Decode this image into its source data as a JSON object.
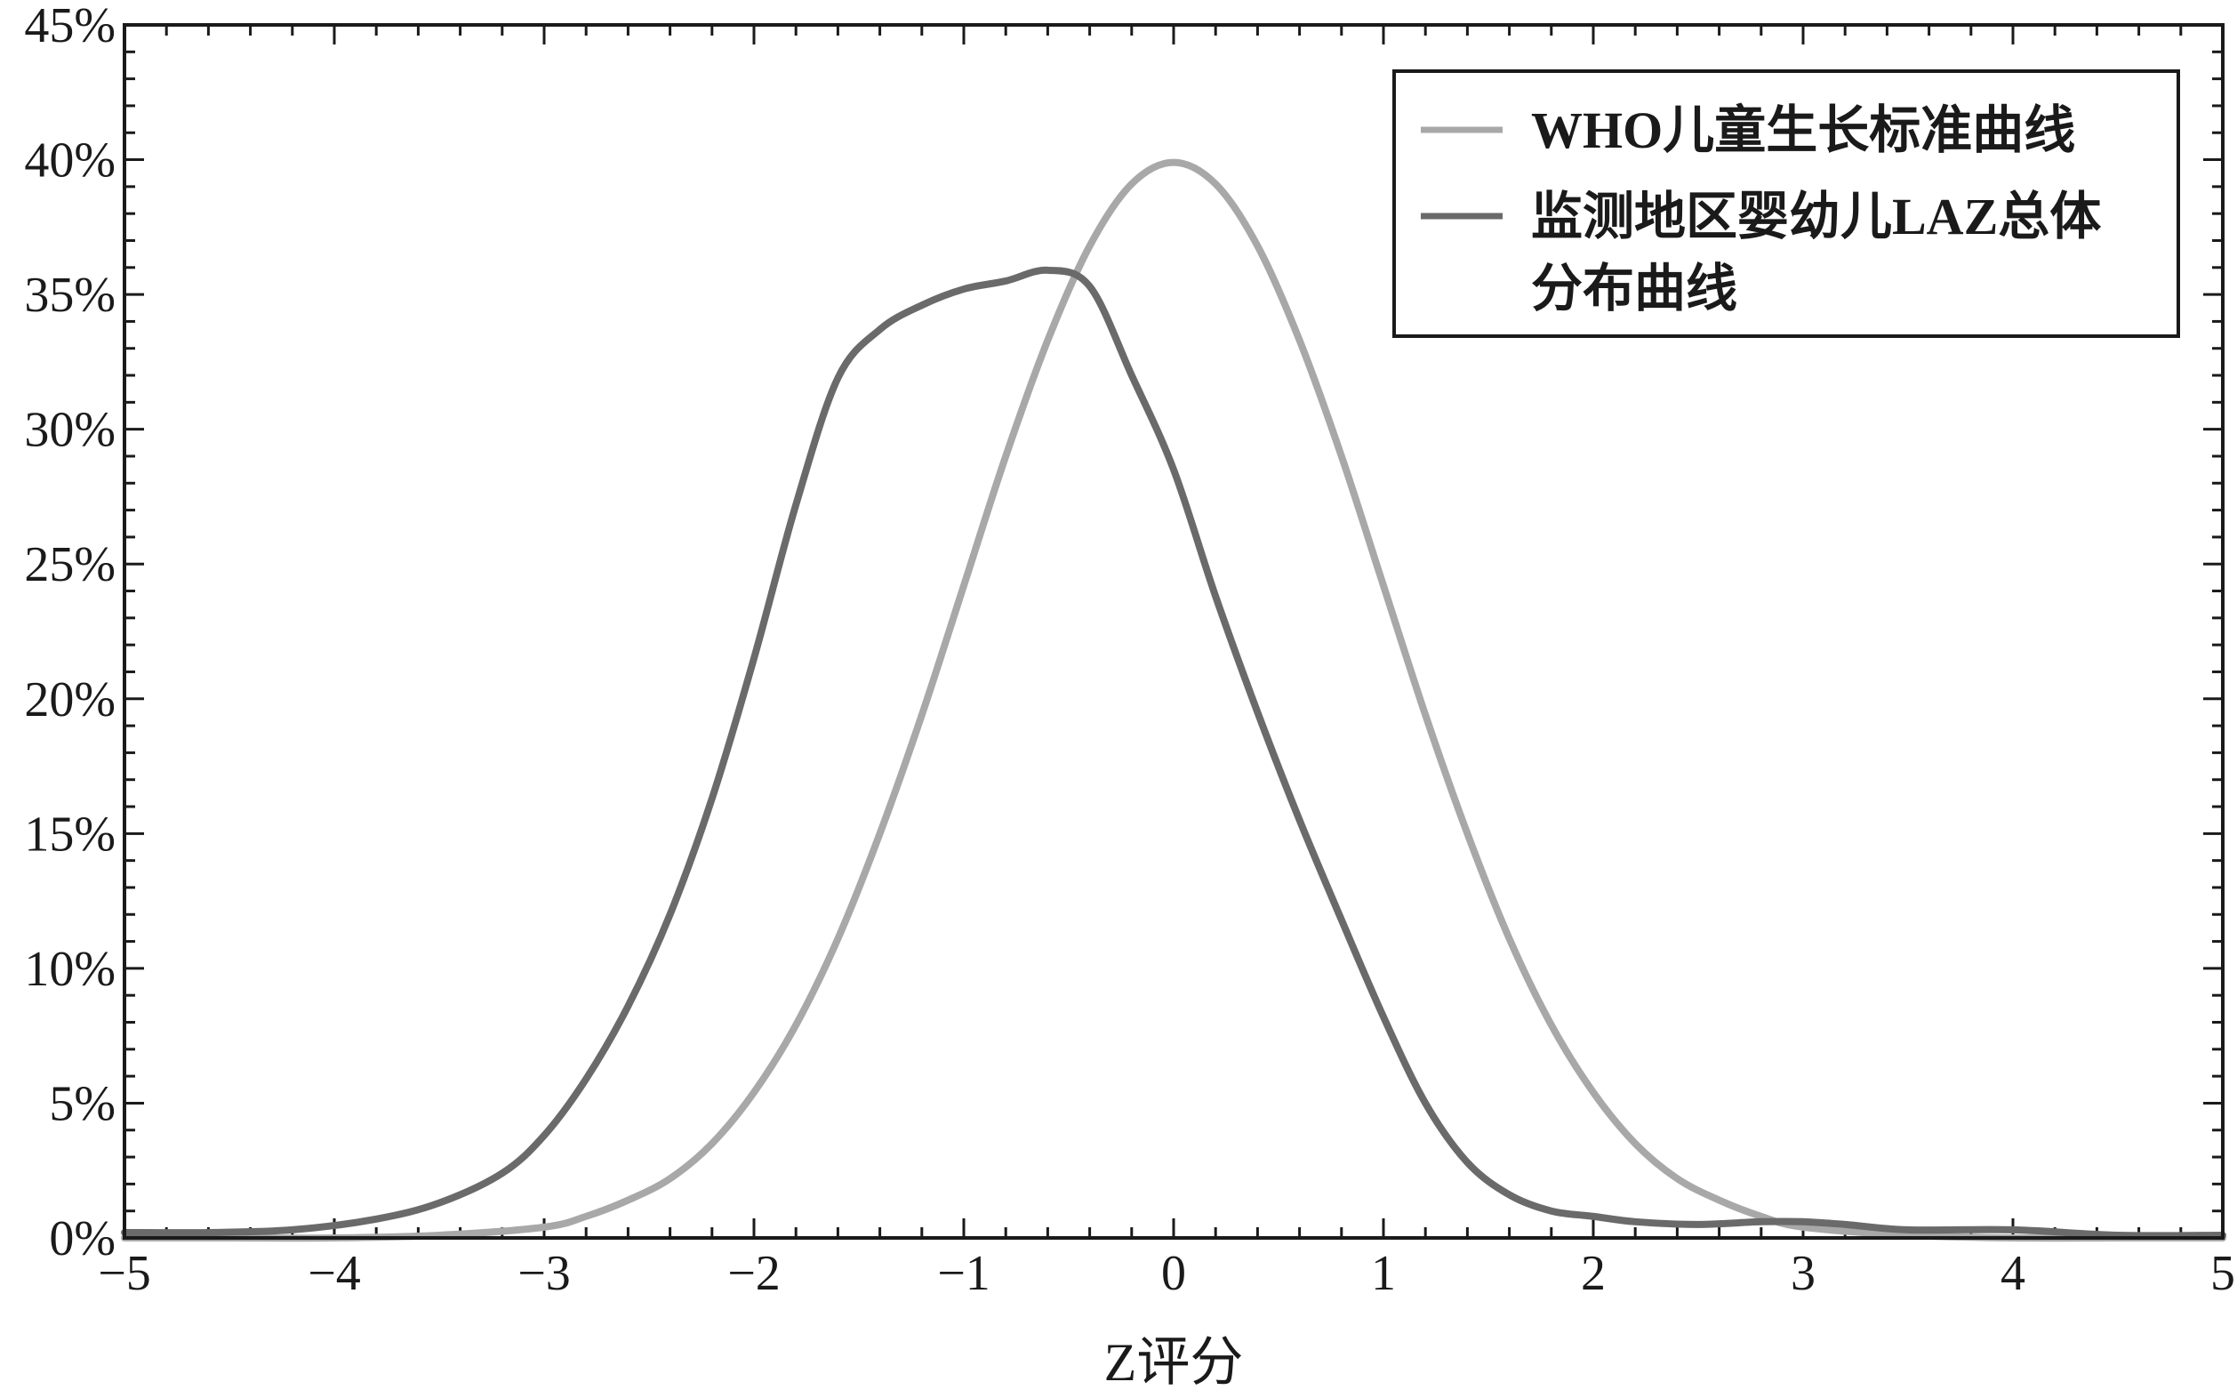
{
  "chart_data": {
    "type": "line",
    "xlabel": "Z评分",
    "ylabel": "",
    "xlim": [
      -5,
      5
    ],
    "ylim": [
      0,
      45
    ],
    "x_ticks": [
      "−5",
      "−4",
      "−3",
      "−2",
      "−1",
      "0",
      "1",
      "2",
      "3",
      "4",
      "5"
    ],
    "y_ticks": [
      "0%",
      "5%",
      "10%",
      "15%",
      "20%",
      "25%",
      "30%",
      "35%",
      "40%",
      "45%"
    ],
    "grid": false,
    "legend_position": "top-right",
    "series": [
      {
        "name": "WHO儿童生长标准曲线",
        "color": "#a8a8a8",
        "x": [
          -5,
          -4.5,
          -4,
          -3.5,
          -3,
          -2.8,
          -2.6,
          -2.4,
          -2.2,
          -2,
          -1.8,
          -1.6,
          -1.4,
          -1.2,
          -1,
          -0.8,
          -0.6,
          -0.4,
          -0.2,
          0,
          0.2,
          0.4,
          0.6,
          0.8,
          1,
          1.2,
          1.4,
          1.6,
          1.8,
          2,
          2.2,
          2.4,
          2.6,
          2.8,
          3,
          3.5,
          4,
          4.5,
          5
        ],
        "values": [
          0,
          0,
          0,
          0.1,
          0.4,
          0.8,
          1.4,
          2.2,
          3.5,
          5.4,
          7.9,
          11.1,
          15.0,
          19.4,
          24.2,
          29.0,
          33.3,
          36.8,
          39.1,
          39.9,
          39.1,
          36.8,
          33.3,
          29.0,
          24.2,
          19.4,
          15.0,
          11.1,
          7.9,
          5.4,
          3.5,
          2.2,
          1.4,
          0.8,
          0.4,
          0.1,
          0,
          0,
          0
        ]
      },
      {
        "name": "监测地区婴幼儿LAZ总体分布曲线",
        "color": "#6a6a6a",
        "x": [
          -5,
          -4.6,
          -4.2,
          -3.8,
          -3.5,
          -3.2,
          -3,
          -2.8,
          -2.6,
          -2.4,
          -2.2,
          -2,
          -1.8,
          -1.6,
          -1.4,
          -1.2,
          -1,
          -0.8,
          -0.6,
          -0.4,
          -0.2,
          0,
          0.2,
          0.4,
          0.6,
          0.8,
          1,
          1.2,
          1.4,
          1.6,
          1.8,
          2,
          2.2,
          2.5,
          2.8,
          3,
          3.2,
          3.5,
          4,
          4.5,
          5
        ],
        "values": [
          0.2,
          0.2,
          0.3,
          0.7,
          1.3,
          2.4,
          3.8,
          5.9,
          8.6,
          12.0,
          16.3,
          21.5,
          27.2,
          31.9,
          33.7,
          34.6,
          35.2,
          35.5,
          35.9,
          35.3,
          32.0,
          28.5,
          23.8,
          19.5,
          15.5,
          11.8,
          8.2,
          5.0,
          2.8,
          1.6,
          1.0,
          0.8,
          0.6,
          0.5,
          0.6,
          0.6,
          0.5,
          0.3,
          0.3,
          0.1,
          0.1
        ]
      }
    ]
  },
  "legend": {
    "entry1": "WHO儿童生长标准曲线",
    "entry2_line1": "监测地区婴幼儿LAZ总体",
    "entry2_line2": "分布曲线"
  }
}
